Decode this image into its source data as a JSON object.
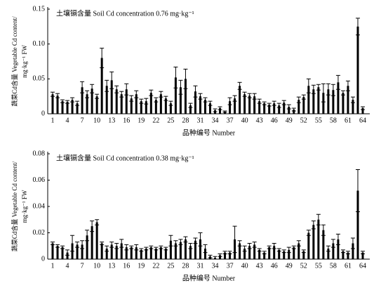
{
  "chart_data": [
    {
      "type": "bar",
      "title": "土壤镉含量 Soil Cd concentration 0.76 mg·kg⁻¹",
      "ylabel": [
        "蔬菜Cd含量 Vegetable Cd content/",
        "mg·kg⁻¹ FW"
      ],
      "xlabel": "品种编号 Number",
      "color": "#000000",
      "categories": [
        "1",
        null,
        null,
        "4",
        null,
        null,
        "7",
        null,
        null,
        "10",
        null,
        null,
        "13",
        null,
        null,
        "16",
        null,
        null,
        "19",
        null,
        null,
        "22",
        null,
        null,
        "25",
        null,
        null,
        "28",
        null,
        null,
        "31",
        null,
        null,
        "34",
        null,
        null,
        "37",
        null,
        null,
        "40",
        null,
        null,
        "43",
        null,
        null,
        "46",
        null,
        null,
        "49",
        null,
        null,
        "52",
        null,
        null,
        "55",
        null,
        null,
        "58",
        null,
        null,
        "61",
        null,
        null,
        "64"
      ],
      "values": [
        0.028,
        0.026,
        0.018,
        0.017,
        0.02,
        0.015,
        0.038,
        0.028,
        0.036,
        0.025,
        0.08,
        0.04,
        0.048,
        0.035,
        0.028,
        0.035,
        0.022,
        0.028,
        0.018,
        0.018,
        0.03,
        0.02,
        0.028,
        0.022,
        0.015,
        0.052,
        0.038,
        0.05,
        0.012,
        0.032,
        0.025,
        0.02,
        0.015,
        0.005,
        0.008,
        0.003,
        0.018,
        0.022,
        0.04,
        0.028,
        0.026,
        0.025,
        0.018,
        0.015,
        0.013,
        0.015,
        0.012,
        0.016,
        0.01,
        0.006,
        0.02,
        0.024,
        0.04,
        0.035,
        0.038,
        0.03,
        0.035,
        0.034,
        0.045,
        0.03,
        0.04,
        0.02,
        0.125,
        0.008
      ],
      "errors": [
        0.003,
        0.003,
        0.002,
        0.002,
        0.003,
        0.003,
        0.008,
        0.005,
        0.006,
        0.003,
        0.014,
        0.008,
        0.012,
        0.005,
        0.004,
        0.008,
        0.004,
        0.005,
        0.003,
        0.004,
        0.004,
        0.003,
        0.004,
        0.003,
        0.003,
        0.015,
        0.01,
        0.014,
        0.003,
        0.008,
        0.004,
        0.003,
        0.003,
        0.002,
        0.002,
        0.001,
        0.005,
        0.004,
        0.005,
        0.003,
        0.003,
        0.004,
        0.003,
        0.002,
        0.002,
        0.003,
        0.003,
        0.003,
        0.003,
        0.002,
        0.004,
        0.003,
        0.01,
        0.006,
        0.004,
        0.013,
        0.008,
        0.008,
        0.01,
        0.003,
        0.007,
        0.004,
        0.012,
        0.002
      ],
      "ylim": [
        0,
        0.15
      ],
      "yticks": [
        0,
        0.05,
        {
          "value": 0.1,
          "label": "0.10"
        },
        0.15
      ]
    },
    {
      "type": "bar",
      "title": "土壤镉含量 Soil Cd concentration 0.38 mg·kg⁻¹",
      "ylabel": [
        "蔬菜Cd含量 Vegetable Cd content/",
        "mg·kg⁻¹ FW"
      ],
      "xlabel": "品种编号 Number",
      "color": "#000000",
      "categories": [
        "1",
        null,
        null,
        "4",
        null,
        null,
        "7",
        null,
        null,
        "10",
        null,
        null,
        "13",
        null,
        null,
        "16",
        null,
        null,
        "19",
        null,
        null,
        "22",
        null,
        null,
        "25",
        null,
        null,
        "28",
        null,
        null,
        "31",
        null,
        null,
        "34",
        null,
        null,
        "37",
        null,
        null,
        "40",
        null,
        null,
        "43",
        null,
        null,
        "46",
        null,
        null,
        "49",
        null,
        null,
        "52",
        null,
        null,
        "55",
        null,
        null,
        "58",
        null,
        null,
        "61",
        null,
        null,
        "64"
      ],
      "values": [
        0.012,
        0.01,
        0.009,
        0.005,
        0.012,
        0.011,
        0.011,
        0.018,
        0.025,
        0.028,
        0.012,
        0.008,
        0.011,
        0.01,
        0.012,
        0.009,
        0.009,
        0.009,
        0.007,
        0.008,
        0.009,
        0.008,
        0.009,
        0.008,
        0.014,
        0.012,
        0.013,
        0.015,
        0.01,
        0.014,
        0.015,
        0.008,
        0.002,
        0.001,
        0.003,
        0.005,
        0.005,
        0.015,
        0.012,
        0.008,
        0.01,
        0.011,
        0.007,
        0.005,
        0.009,
        0.01,
        0.007,
        0.006,
        0.007,
        0.009,
        0.012,
        0.006,
        0.02,
        0.026,
        0.03,
        0.022,
        0.008,
        0.012,
        0.015,
        0.006,
        0.005,
        0.012,
        0.052,
        0.005
      ],
      "errors": [
        0.001,
        0.001,
        0.001,
        0.002,
        0.006,
        0.002,
        0.003,
        0.004,
        0.004,
        0.002,
        0.001,
        0.002,
        0.002,
        0.002,
        0.003,
        0.002,
        0.001,
        0.002,
        0.001,
        0.001,
        0.001,
        0.001,
        0.001,
        0.001,
        0.004,
        0.002,
        0.002,
        0.002,
        0.002,
        0.002,
        0.005,
        0.003,
        0.001,
        0.001,
        0.001,
        0.001,
        0.001,
        0.01,
        0.002,
        0.002,
        0.002,
        0.002,
        0.001,
        0.001,
        0.001,
        0.002,
        0.001,
        0.001,
        0.002,
        0.001,
        0.002,
        0.001,
        0.002,
        0.003,
        0.004,
        0.004,
        0.002,
        0.003,
        0.004,
        0.001,
        0.001,
        0.004,
        0.016,
        0.001
      ],
      "ylim": [
        0,
        0.08
      ],
      "yticks": [
        0,
        0.02,
        0.04,
        0.06,
        0.08
      ]
    }
  ]
}
